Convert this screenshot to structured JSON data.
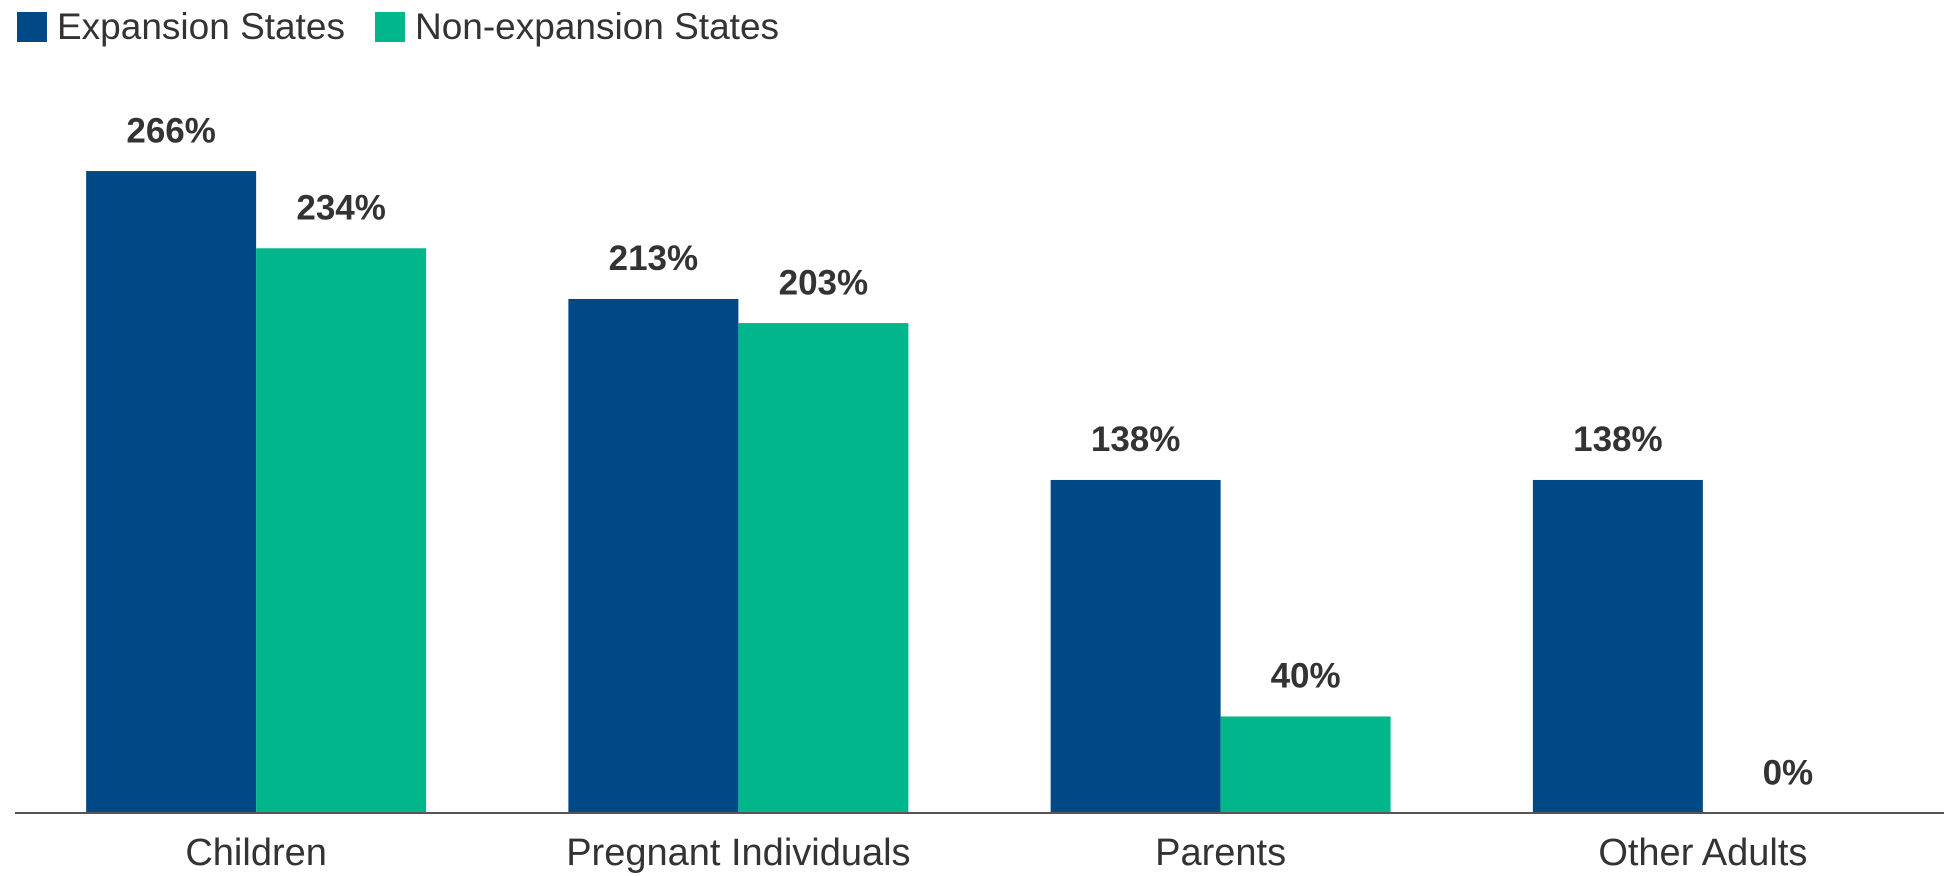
{
  "chart_data": {
    "type": "bar",
    "categories": [
      "Children",
      "Pregnant Individuals",
      "Parents",
      "Other Adults"
    ],
    "series": [
      {
        "name": "Expansion States",
        "color": "#004987",
        "values": [
          266,
          213,
          138,
          138
        ],
        "value_labels": [
          "266%",
          "213%",
          "138%",
          "138%"
        ]
      },
      {
        "name": "Non-expansion States",
        "color": "#00b68a",
        "values": [
          234,
          203,
          40,
          0
        ],
        "value_labels": [
          "234%",
          "203%",
          "40%",
          "0%"
        ]
      }
    ],
    "ylim": [
      0,
      300
    ],
    "grid": false,
    "legend": "top-left"
  }
}
